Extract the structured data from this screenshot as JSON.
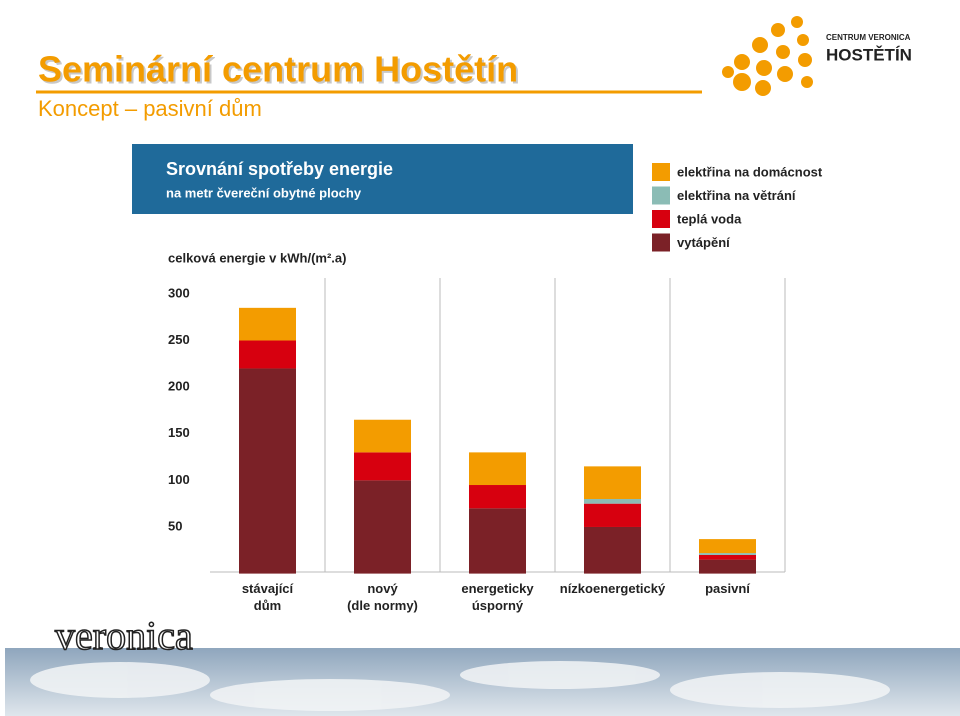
{
  "header": {
    "title": "Seminární centrum Hostětín",
    "subtitle": "Koncept – pasivní dům",
    "logo_small": "CENTRUM VERONICA",
    "logo_big": "HOSTĚTÍN",
    "footer_logo": "veronica"
  },
  "chart_data": {
    "type": "bar",
    "stacked": true,
    "title": "Srovnání spotřeby energie",
    "subtitle": "na metr čvereční obytné plochy",
    "y_label": "celková energie v kWh/(m².a)",
    "categories": [
      "stávající\ndům",
      "nový\n(dle normy)",
      "energeticky\núsporný",
      "nízkoenergetický",
      "pasivní"
    ],
    "series": [
      {
        "name": "vytápění",
        "color": "#7b2127",
        "values": [
          220,
          100,
          70,
          50,
          15
        ]
      },
      {
        "name": "teplá voda",
        "color": "#d7000f",
        "values": [
          30,
          30,
          25,
          25,
          5
        ]
      },
      {
        "name": "elektřina na větrání",
        "color": "#8bbcb5",
        "values": [
          0,
          0,
          0,
          5,
          2
        ]
      },
      {
        "name": "elektřina na domácnost",
        "color": "#f39c00",
        "values": [
          35,
          35,
          35,
          35,
          15
        ]
      }
    ],
    "ylim": [
      0,
      317
    ],
    "yticks": [
      50,
      100,
      150,
      200,
      250,
      300
    ],
    "grid": false,
    "legend": "top-right"
  }
}
